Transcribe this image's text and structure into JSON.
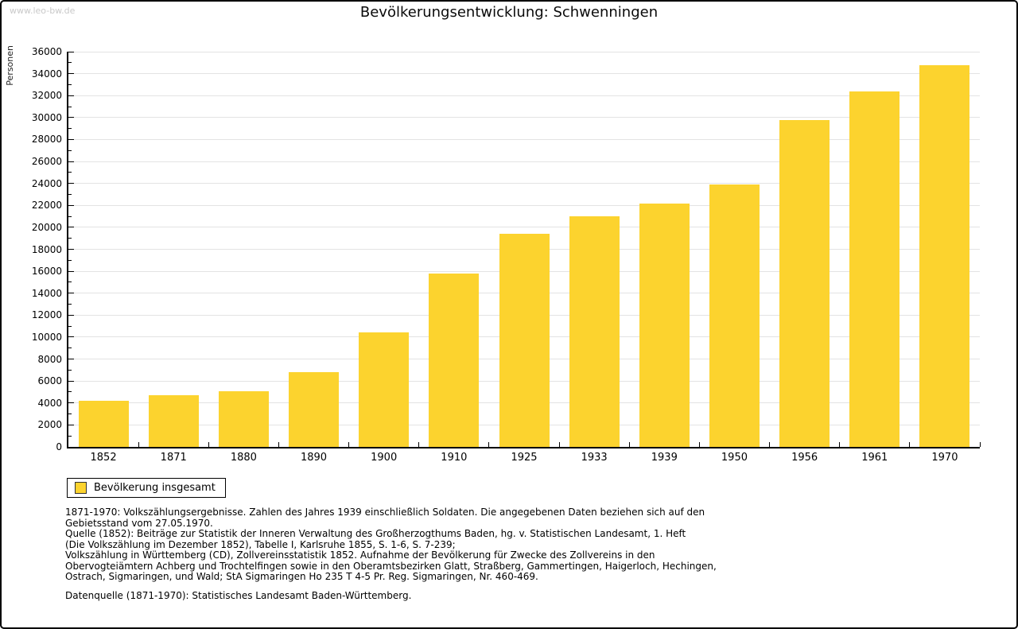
{
  "page": {
    "watermark": "www.leo-bw.de",
    "title": "Bevölkerungsentwicklung: Schwenningen"
  },
  "chart_data": {
    "type": "bar",
    "title": "Bevölkerungsentwicklung: Schwenningen",
    "categories": [
      "1852",
      "1871",
      "1880",
      "1890",
      "1900",
      "1910",
      "1925",
      "1933",
      "1939",
      "1950",
      "1956",
      "1961",
      "1970"
    ],
    "values": [
      4200,
      4700,
      5100,
      6800,
      10400,
      15800,
      19400,
      21000,
      22200,
      23900,
      29800,
      32400,
      34800
    ],
    "series_name": "Bevölkerung insgesamt",
    "xlabel": "",
    "ylabel": "Personen",
    "ylim": [
      0,
      36000
    ],
    "yticks": [
      0,
      2000,
      4000,
      6000,
      8000,
      10000,
      12000,
      14000,
      16000,
      18000,
      20000,
      22000,
      24000,
      26000,
      28000,
      30000,
      32000,
      34000,
      36000
    ],
    "minor_tick_step": 1000,
    "grid": true,
    "legend_position": "bottom-left",
    "bar_color": "#fcd32e",
    "grid_color": "#e3e3e3"
  },
  "legend": {
    "label": "Bevölkerung insgesamt"
  },
  "footnotes": {
    "lines": [
      "1871-1970: Volkszählungsergebnisse. Zahlen des Jahres 1939 einschließlich Soldaten. Die angegebenen Daten beziehen sich auf den",
      "Gebietsstand vom 27.05.1970.",
      "Quelle (1852): Beiträge zur Statistik der Inneren Verwaltung des Großherzogthums Baden, hg. v. Statistischen Landesamt, 1. Heft",
      "(Die Volkszählung im Dezember 1852), Tabelle I, Karlsruhe 1855, S. 1-6, S. 7-239;",
      "Volkszählung in Württemberg (CD), Zollvereinsstatistik 1852. Aufnahme der Bevölkerung für Zwecke des Zollvereins in den",
      "Obervogteiämtern Achberg und Trochtelfingen sowie in den Oberamtsbezirken Glatt, Straßberg, Gammertingen, Haigerloch, Hechingen,",
      "Ostrach, Sigmaringen, und Wald; StA Sigmaringen Ho 235 T 4-5 Pr. Reg. Sigmaringen, Nr. 460-469."
    ],
    "datasource": "Datenquelle (1871-1970): Statistisches Landesamt Baden-Württemberg."
  }
}
